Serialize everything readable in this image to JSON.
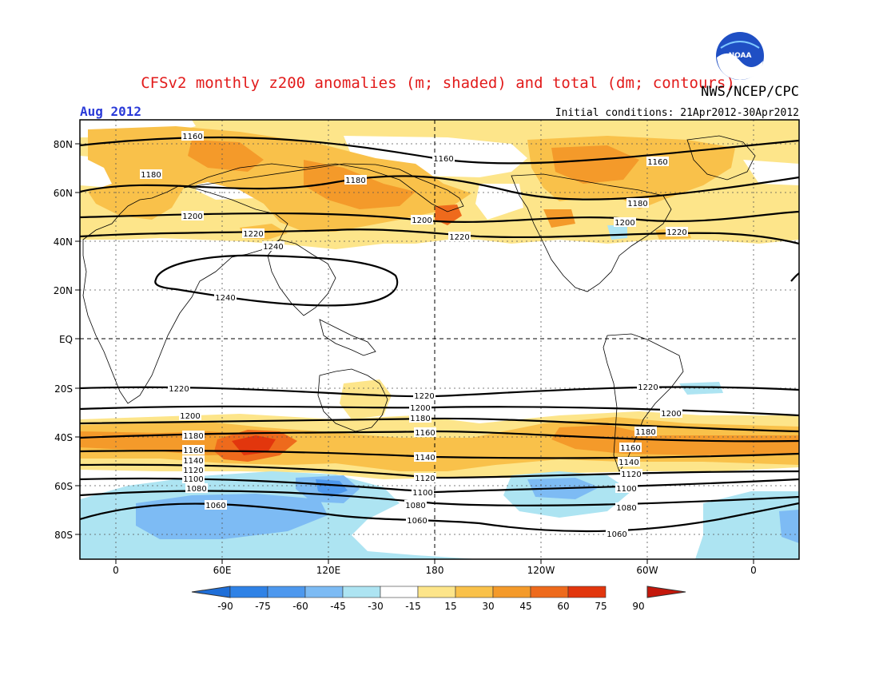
{
  "header": {
    "title": "CFSv2 monthly z200 anomalies (m; shaded) and total (dm; contours)",
    "agency": "NWS/NCEP/CPC",
    "logo_text": "NOAA",
    "month": "Aug 2012",
    "init_conditions": "Initial conditions: 21Apr2012-30Apr2012"
  },
  "axes": {
    "lat_labels": [
      "80N",
      "60N",
      "40N",
      "20N",
      "EQ",
      "20S",
      "40S",
      "60S",
      "80S"
    ],
    "lon_labels": [
      "0",
      "60E",
      "120E",
      "180",
      "120W",
      "60W",
      "0"
    ]
  },
  "colorbar": {
    "labels": [
      "-90",
      "-75",
      "-60",
      "-45",
      "-30",
      "-15",
      "15",
      "30",
      "45",
      "60",
      "75",
      "90"
    ],
    "colors": [
      "#1e6ed8",
      "#2f82e6",
      "#4d98ee",
      "#7dbbf4",
      "#ade4f2",
      "#ffffff",
      "#fde58a",
      "#f9c14a",
      "#f49a2a",
      "#ee6a1c",
      "#e2360d",
      "#c4170b"
    ]
  },
  "contour_labels": [
    {
      "text": "1160"
    },
    {
      "text": "1180"
    },
    {
      "text": "1200"
    },
    {
      "text": "1220"
    },
    {
      "text": "1240"
    },
    {
      "text": "1160"
    },
    {
      "text": "1180"
    },
    {
      "text": "1200"
    },
    {
      "text": "1220"
    },
    {
      "text": "1160"
    },
    {
      "text": "1180"
    },
    {
      "text": "1200"
    },
    {
      "text": "1220"
    },
    {
      "text": "1240"
    },
    {
      "text": "1220"
    },
    {
      "text": "1200"
    },
    {
      "text": "1180"
    },
    {
      "text": "1160"
    },
    {
      "text": "1140"
    },
    {
      "text": "1120"
    },
    {
      "text": "1100"
    },
    {
      "text": "1080"
    },
    {
      "text": "1060"
    },
    {
      "text": "1220"
    },
    {
      "text": "1200"
    },
    {
      "text": "1180"
    },
    {
      "text": "1160"
    },
    {
      "text": "1140"
    },
    {
      "text": "1120"
    },
    {
      "text": "1100"
    },
    {
      "text": "1080"
    },
    {
      "text": "1060"
    },
    {
      "text": "1220"
    },
    {
      "text": "1200"
    },
    {
      "text": "1180"
    },
    {
      "text": "1160"
    },
    {
      "text": "1140"
    },
    {
      "text": "1120"
    },
    {
      "text": "1100"
    },
    {
      "text": "1080"
    },
    {
      "text": "1060"
    }
  ]
}
